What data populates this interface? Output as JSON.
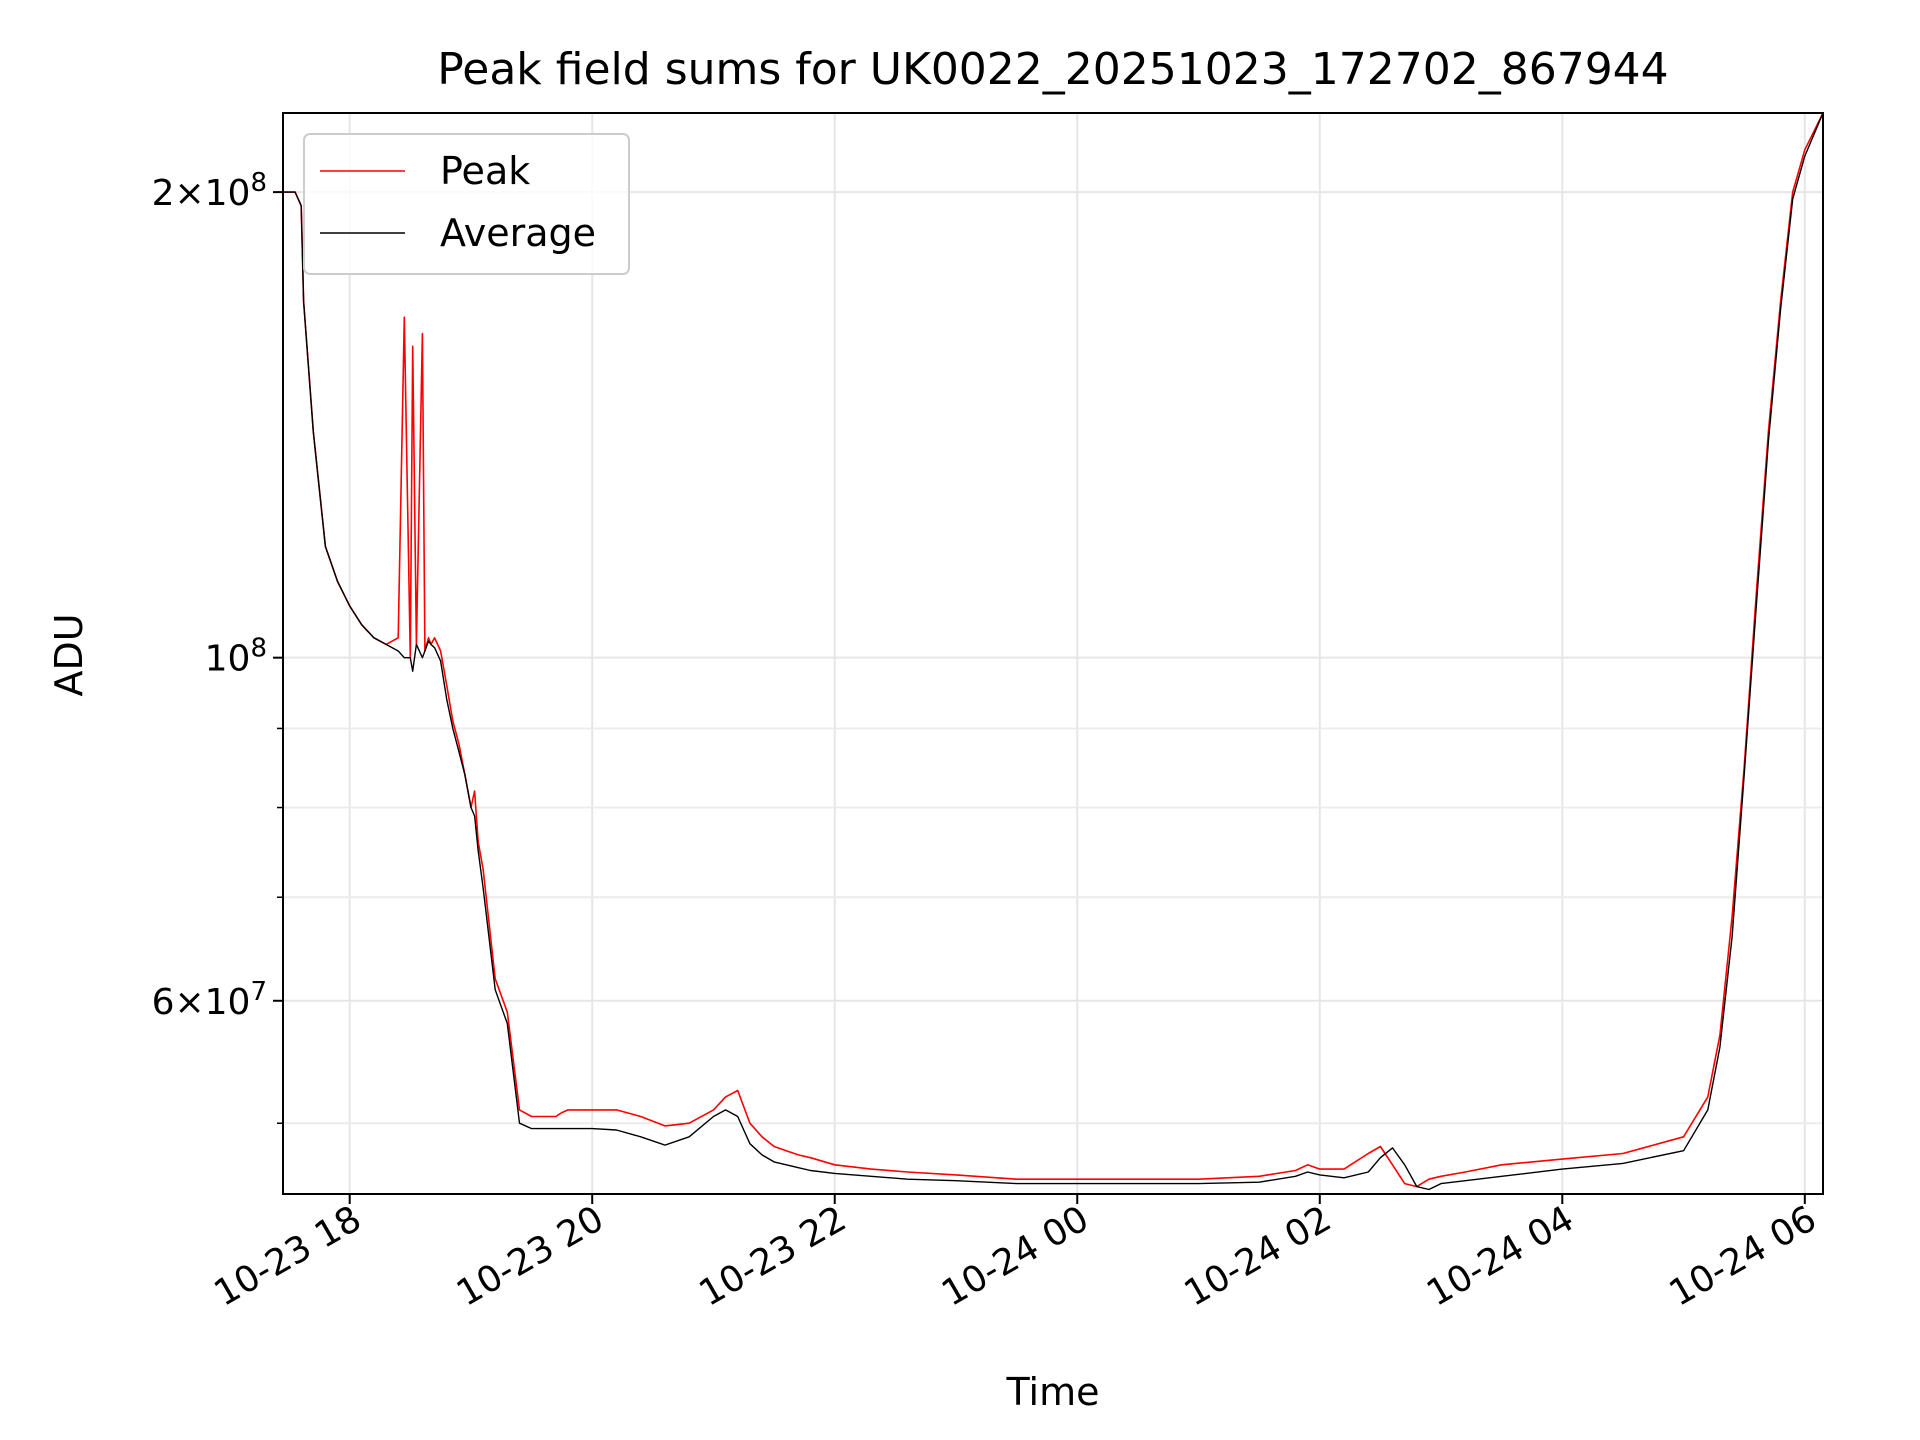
{
  "chart_data": {
    "type": "line",
    "title": "Peak field sums for UK0022_20251023_172702_867944",
    "xlabel": "Time",
    "ylabel": "ADU",
    "yscale": "log",
    "ylim": [
      45000000,
      225000000
    ],
    "xlim_hours": [
      -0.55,
      12.15
    ],
    "grid": true,
    "legend_position": "upper-left",
    "x_ticks": [
      {
        "hours": 0,
        "label": "10-23 18"
      },
      {
        "hours": 2,
        "label": "10-23 20"
      },
      {
        "hours": 4,
        "label": "10-23 22"
      },
      {
        "hours": 6,
        "label": "10-24 00"
      },
      {
        "hours": 8,
        "label": "10-24 02"
      },
      {
        "hours": 10,
        "label": "10-24 04"
      },
      {
        "hours": 12,
        "label": "10-24 06"
      }
    ],
    "y_major_ticks": [
      {
        "value": 100000000,
        "base": "10",
        "exp": "8",
        "mantissa": ""
      },
      {
        "value": 200000000,
        "base": "10",
        "exp": "8",
        "mantissa": "2"
      },
      {
        "value": 60000000,
        "base": "10",
        "exp": "7",
        "mantissa": "6"
      }
    ],
    "y_minor_ticks": [
      50000000,
      70000000,
      80000000,
      90000000
    ],
    "times_label_note": "x values are hours relative to 2025-10-23 18:00",
    "series": [
      {
        "name": "Peak",
        "color": "#ff0000",
        "x": [
          -0.55,
          -0.45,
          -0.4,
          -0.38,
          -0.3,
          -0.2,
          -0.1,
          0,
          0.1,
          0.2,
          0.3,
          0.4,
          0.45,
          0.5,
          0.52,
          0.55,
          0.6,
          0.62,
          0.65,
          0.67,
          0.7,
          0.75,
          0.8,
          0.85,
          0.9,
          0.95,
          1.0,
          1.03,
          1.06,
          1.1,
          1.2,
          1.3,
          1.4,
          1.5,
          1.6,
          1.7,
          1.75,
          1.8,
          1.85,
          1.9,
          2.0,
          2.2,
          2.4,
          2.6,
          2.8,
          3.0,
          3.1,
          3.2,
          3.3,
          3.4,
          3.5,
          3.6,
          3.7,
          3.8,
          4.0,
          4.3,
          4.6,
          5.0,
          5.5,
          6.0,
          6.5,
          7.0,
          7.5,
          7.8,
          7.9,
          8.0,
          8.2,
          8.4,
          8.5,
          8.6,
          8.7,
          8.8,
          8.9,
          9.0,
          9.2,
          9.5,
          10.0,
          10.5,
          11.0,
          11.2,
          11.3,
          11.4,
          11.5,
          11.6,
          11.7,
          11.8,
          11.9,
          12.0,
          12.15
        ],
        "y": [
          200000000,
          200000000,
          196000000,
          170000000,
          140000000,
          118000000,
          112000000,
          108000000,
          105000000,
          103000000,
          102000000,
          103000000,
          166000000,
          100000000,
          159000000,
          102000000,
          162000000,
          101000000,
          103000000,
          102000000,
          103000000,
          101000000,
          96000000,
          91000000,
          88000000,
          84000000,
          80000000,
          82000000,
          76000000,
          73000000,
          62000000,
          59000000,
          51000000,
          50500000,
          50500000,
          50500000,
          50800000,
          51000000,
          51000000,
          51000000,
          51000000,
          51000000,
          50500000,
          49800000,
          50000000,
          51000000,
          52000000,
          52500000,
          50000000,
          49000000,
          48300000,
          48000000,
          47700000,
          47500000,
          47000000,
          46700000,
          46500000,
          46300000,
          46000000,
          46000000,
          46000000,
          46000000,
          46200000,
          46600000,
          47000000,
          46700000,
          46700000,
          47800000,
          48300000,
          47000000,
          45700000,
          45500000,
          46000000,
          46200000,
          46500000,
          47000000,
          47400000,
          47800000,
          49000000,
          52000000,
          57000000,
          68000000,
          85000000,
          110000000,
          140000000,
          170000000,
          200000000,
          213000000,
          225000000
        ]
      },
      {
        "name": "Average",
        "color": "#000000",
        "x": [
          -0.55,
          -0.45,
          -0.4,
          -0.38,
          -0.3,
          -0.2,
          -0.1,
          0,
          0.1,
          0.2,
          0.3,
          0.4,
          0.45,
          0.5,
          0.52,
          0.55,
          0.6,
          0.62,
          0.65,
          0.67,
          0.7,
          0.75,
          0.8,
          0.85,
          0.9,
          0.95,
          1.0,
          1.03,
          1.06,
          1.1,
          1.2,
          1.3,
          1.4,
          1.5,
          1.6,
          1.7,
          1.75,
          1.8,
          1.85,
          1.9,
          2.0,
          2.2,
          2.4,
          2.6,
          2.8,
          3.0,
          3.1,
          3.2,
          3.3,
          3.4,
          3.5,
          3.6,
          3.7,
          3.8,
          4.0,
          4.3,
          4.6,
          5.0,
          5.5,
          6.0,
          6.5,
          7.0,
          7.5,
          7.8,
          7.9,
          8.0,
          8.2,
          8.4,
          8.5,
          8.6,
          8.7,
          8.8,
          8.9,
          9.0,
          9.2,
          9.5,
          10.0,
          10.5,
          11.0,
          11.2,
          11.3,
          11.4,
          11.5,
          11.6,
          11.7,
          11.8,
          11.9,
          12.0,
          12.15
        ],
        "y": [
          200000000,
          200000000,
          196000000,
          170000000,
          140000000,
          118000000,
          112000000,
          108000000,
          105000000,
          103000000,
          102000000,
          101000000,
          100000000,
          100000000,
          98000000,
          102000000,
          100000000,
          101000000,
          102500000,
          102000000,
          101500000,
          99500000,
          94000000,
          90000000,
          87000000,
          84000000,
          80000000,
          79000000,
          75000000,
          71000000,
          61000000,
          58000000,
          50000000,
          49600000,
          49600000,
          49600000,
          49600000,
          49600000,
          49600000,
          49600000,
          49600000,
          49500000,
          49000000,
          48400000,
          49000000,
          50500000,
          51000000,
          50500000,
          48500000,
          47700000,
          47200000,
          47000000,
          46800000,
          46600000,
          46400000,
          46200000,
          46000000,
          45900000,
          45700000,
          45700000,
          45700000,
          45700000,
          45800000,
          46200000,
          46500000,
          46300000,
          46100000,
          46500000,
          47500000,
          48200000,
          47000000,
          45500000,
          45300000,
          45700000,
          45900000,
          46200000,
          46700000,
          47100000,
          48000000,
          51000000,
          56000000,
          66000000,
          84000000,
          108000000,
          138000000,
          168000000,
          198000000,
          211000000,
          225000000
        ]
      }
    ]
  }
}
